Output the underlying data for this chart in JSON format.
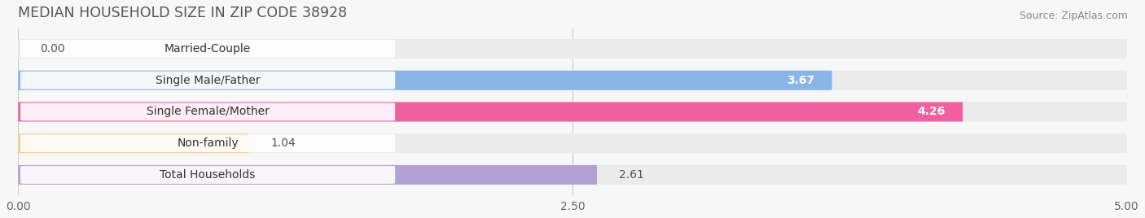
{
  "title": "MEDIAN HOUSEHOLD SIZE IN ZIP CODE 38928",
  "source": "Source: ZipAtlas.com",
  "categories": [
    "Married-Couple",
    "Single Male/Father",
    "Single Female/Mother",
    "Non-family",
    "Total Households"
  ],
  "values": [
    0.0,
    3.67,
    4.26,
    1.04,
    2.61
  ],
  "bar_colors": [
    "#6dcfc7",
    "#89b4e8",
    "#f0609e",
    "#f5c98a",
    "#b3a0d4"
  ],
  "bar_bg_color": "#ebebeb",
  "xlim_max": 5.0,
  "xticks": [
    0.0,
    2.5,
    5.0
  ],
  "xtick_labels": [
    "0.00",
    "2.50",
    "5.00"
  ],
  "value_labels": [
    "0.00",
    "3.67",
    "4.26",
    "1.04",
    "2.61"
  ],
  "value_inside": [
    false,
    true,
    true,
    false,
    false
  ],
  "background_color": "#f7f7f7",
  "title_fontsize": 12.5,
  "label_fontsize": 10,
  "value_fontsize": 10,
  "source_fontsize": 9
}
